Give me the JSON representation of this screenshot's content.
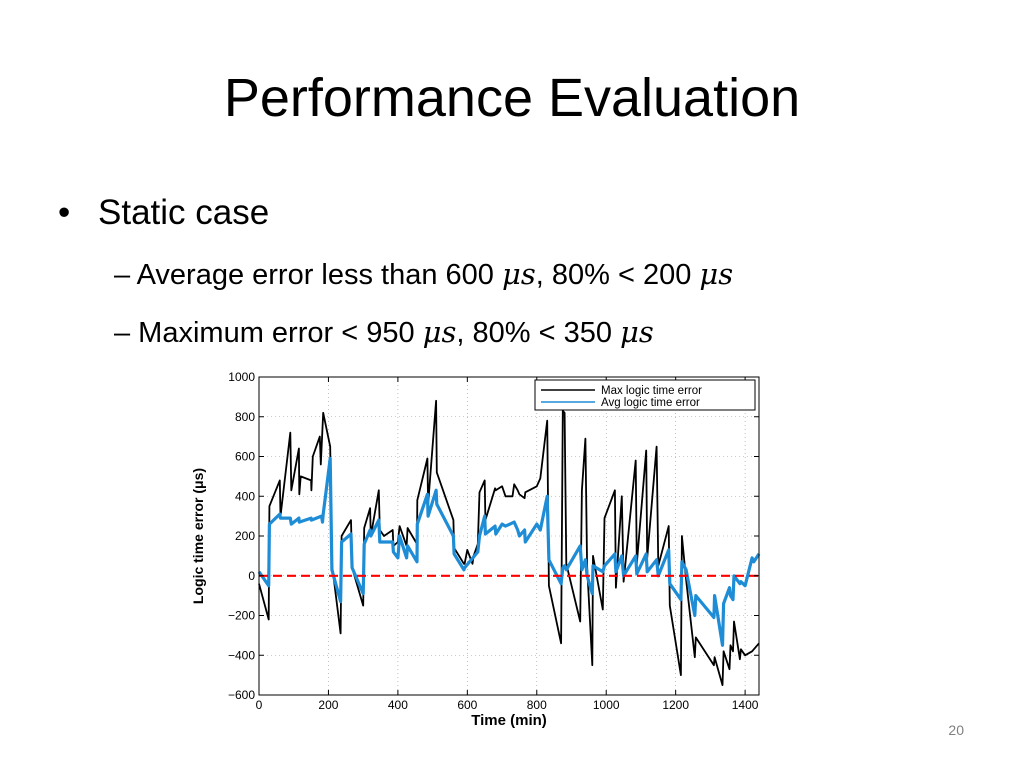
{
  "slide": {
    "title": "Performance Evaluation",
    "bullet": "Static case",
    "sub1": {
      "prefix": "– Average error less than 600 ",
      "mid": ", 80% < 200 ",
      "unit": "μs"
    },
    "sub2": {
      "prefix": "– Maximum error < 950 ",
      "mid": ", 80% < 350 ",
      "unit": "μs"
    },
    "page_number": "20"
  },
  "colors": {
    "max": "#000000",
    "avg": "#1f8dd6",
    "zero": "#ff0000"
  },
  "chart_data": {
    "type": "line",
    "xlabel": "Time (min)",
    "ylabel": "Logic time error (μs)",
    "xlim": [
      0,
      1440
    ],
    "ylim": [
      -600,
      1000
    ],
    "xticks": [
      0,
      200,
      400,
      600,
      800,
      1000,
      1200,
      1400
    ],
    "yticks": [
      -600,
      -400,
      -200,
      0,
      200,
      400,
      600,
      800,
      1000
    ],
    "xtick_labels": [
      "0",
      "200",
      "400",
      "600",
      "800",
      "1000",
      "1200",
      "1400"
    ],
    "ytick_labels": [
      "−600",
      "−400",
      "−200",
      "0",
      "200",
      "400",
      "600",
      "800",
      "1000"
    ],
    "grid": true,
    "legend_position": "top-right",
    "series": [
      {
        "name": "Max logic time error",
        "color": "#000000",
        "points": [
          [
            0,
            -40
          ],
          [
            28,
            -220
          ],
          [
            30,
            350
          ],
          [
            60,
            480
          ],
          [
            62,
            300
          ],
          [
            90,
            720
          ],
          [
            93,
            430
          ],
          [
            115,
            640
          ],
          [
            116,
            410
          ],
          [
            120,
            500
          ],
          [
            150,
            480
          ],
          [
            151,
            430
          ],
          [
            155,
            600
          ],
          [
            175,
            700
          ],
          [
            178,
            560
          ],
          [
            185,
            820
          ],
          [
            205,
            650
          ],
          [
            210,
            60
          ],
          [
            235,
            -290
          ],
          [
            238,
            200
          ],
          [
            265,
            280
          ],
          [
            268,
            40
          ],
          [
            300,
            -150
          ],
          [
            303,
            240
          ],
          [
            320,
            340
          ],
          [
            322,
            200
          ],
          [
            345,
            430
          ],
          [
            348,
            230
          ],
          [
            360,
            200
          ],
          [
            385,
            230
          ],
          [
            387,
            150
          ],
          [
            400,
            170
          ],
          [
            405,
            250
          ],
          [
            425,
            150
          ],
          [
            428,
            240
          ],
          [
            455,
            160
          ],
          [
            456,
            380
          ],
          [
            485,
            590
          ],
          [
            487,
            360
          ],
          [
            510,
            880
          ],
          [
            512,
            520
          ],
          [
            560,
            280
          ],
          [
            562,
            140
          ],
          [
            590,
            60
          ],
          [
            592,
            60
          ],
          [
            600,
            130
          ],
          [
            615,
            60
          ],
          [
            618,
            100
          ],
          [
            630,
            160
          ],
          [
            635,
            420
          ],
          [
            650,
            480
          ],
          [
            652,
            280
          ],
          [
            680,
            440
          ],
          [
            682,
            430
          ],
          [
            700,
            450
          ],
          [
            710,
            400
          ],
          [
            730,
            400
          ],
          [
            735,
            460
          ],
          [
            745,
            430
          ],
          [
            750,
            410
          ],
          [
            765,
            390
          ],
          [
            767,
            420
          ],
          [
            800,
            450
          ],
          [
            810,
            490
          ],
          [
            830,
            780
          ],
          [
            835,
            -50
          ],
          [
            870,
            -340
          ],
          [
            875,
            830
          ],
          [
            880,
            820
          ],
          [
            885,
            60
          ],
          [
            925,
            -230
          ],
          [
            930,
            430
          ],
          [
            940,
            690
          ],
          [
            945,
            50
          ],
          [
            960,
            -450
          ],
          [
            962,
            100
          ],
          [
            990,
            -170
          ],
          [
            995,
            290
          ],
          [
            1025,
            430
          ],
          [
            1028,
            -60
          ],
          [
            1045,
            400
          ],
          [
            1050,
            -30
          ],
          [
            1085,
            580
          ],
          [
            1088,
            60
          ],
          [
            1115,
            630
          ],
          [
            1118,
            90
          ],
          [
            1145,
            650
          ],
          [
            1150,
            50
          ],
          [
            1180,
            250
          ],
          [
            1183,
            -150
          ],
          [
            1215,
            -500
          ],
          [
            1218,
            200
          ],
          [
            1230,
            -20
          ],
          [
            1255,
            -410
          ],
          [
            1258,
            -310
          ],
          [
            1310,
            -450
          ],
          [
            1312,
            -410
          ],
          [
            1335,
            -550
          ],
          [
            1338,
            -380
          ],
          [
            1355,
            -470
          ],
          [
            1358,
            -350
          ],
          [
            1365,
            -380
          ],
          [
            1368,
            -230
          ],
          [
            1385,
            -420
          ],
          [
            1388,
            -370
          ],
          [
            1400,
            -400
          ],
          [
            1420,
            -380
          ],
          [
            1425,
            -370
          ],
          [
            1440,
            -340
          ]
        ]
      },
      {
        "name": "Avg logic time error",
        "color": "#1f8dd6",
        "points": [
          [
            0,
            20
          ],
          [
            28,
            -50
          ],
          [
            30,
            260
          ],
          [
            60,
            310
          ],
          [
            62,
            290
          ],
          [
            90,
            290
          ],
          [
            93,
            260
          ],
          [
            115,
            290
          ],
          [
            116,
            270
          ],
          [
            150,
            290
          ],
          [
            151,
            280
          ],
          [
            180,
            300
          ],
          [
            183,
            270
          ],
          [
            185,
            310
          ],
          [
            205,
            590
          ],
          [
            210,
            30
          ],
          [
            235,
            -130
          ],
          [
            238,
            170
          ],
          [
            265,
            210
          ],
          [
            268,
            40
          ],
          [
            300,
            -90
          ],
          [
            303,
            160
          ],
          [
            320,
            230
          ],
          [
            322,
            200
          ],
          [
            345,
            280
          ],
          [
            348,
            170
          ],
          [
            360,
            170
          ],
          [
            385,
            170
          ],
          [
            387,
            120
          ],
          [
            400,
            90
          ],
          [
            405,
            200
          ],
          [
            425,
            90
          ],
          [
            428,
            150
          ],
          [
            455,
            70
          ],
          [
            456,
            260
          ],
          [
            485,
            410
          ],
          [
            487,
            300
          ],
          [
            510,
            430
          ],
          [
            512,
            360
          ],
          [
            560,
            200
          ],
          [
            562,
            110
          ],
          [
            590,
            30
          ],
          [
            592,
            40
          ],
          [
            630,
            120
          ],
          [
            635,
            200
          ],
          [
            650,
            300
          ],
          [
            652,
            210
          ],
          [
            680,
            250
          ],
          [
            682,
            210
          ],
          [
            700,
            260
          ],
          [
            710,
            250
          ],
          [
            735,
            270
          ],
          [
            745,
            230
          ],
          [
            750,
            200
          ],
          [
            765,
            230
          ],
          [
            767,
            170
          ],
          [
            800,
            260
          ],
          [
            810,
            230
          ],
          [
            830,
            400
          ],
          [
            835,
            80
          ],
          [
            870,
            -40
          ],
          [
            875,
            40
          ],
          [
            880,
            50
          ],
          [
            885,
            30
          ],
          [
            925,
            150
          ],
          [
            930,
            30
          ],
          [
            940,
            80
          ],
          [
            945,
            0
          ],
          [
            960,
            -90
          ],
          [
            962,
            50
          ],
          [
            990,
            20
          ],
          [
            995,
            50
          ],
          [
            1025,
            110
          ],
          [
            1028,
            20
          ],
          [
            1045,
            100
          ],
          [
            1050,
            0
          ],
          [
            1085,
            100
          ],
          [
            1088,
            10
          ],
          [
            1115,
            110
          ],
          [
            1118,
            20
          ],
          [
            1145,
            80
          ],
          [
            1150,
            0
          ],
          [
            1180,
            130
          ],
          [
            1183,
            -40
          ],
          [
            1215,
            -120
          ],
          [
            1218,
            70
          ],
          [
            1230,
            30
          ],
          [
            1255,
            -200
          ],
          [
            1258,
            -100
          ],
          [
            1310,
            -210
          ],
          [
            1312,
            -100
          ],
          [
            1335,
            -350
          ],
          [
            1338,
            -140
          ],
          [
            1355,
            -60
          ],
          [
            1358,
            -100
          ],
          [
            1365,
            -120
          ],
          [
            1368,
            0
          ],
          [
            1385,
            -40
          ],
          [
            1388,
            -30
          ],
          [
            1400,
            -50
          ],
          [
            1420,
            90
          ],
          [
            1425,
            70
          ],
          [
            1440,
            110
          ]
        ]
      },
      {
        "name": "",
        "color": "#ff0000",
        "dashed": true,
        "points": [
          [
            0,
            0
          ],
          [
            1440,
            0
          ]
        ]
      }
    ]
  }
}
